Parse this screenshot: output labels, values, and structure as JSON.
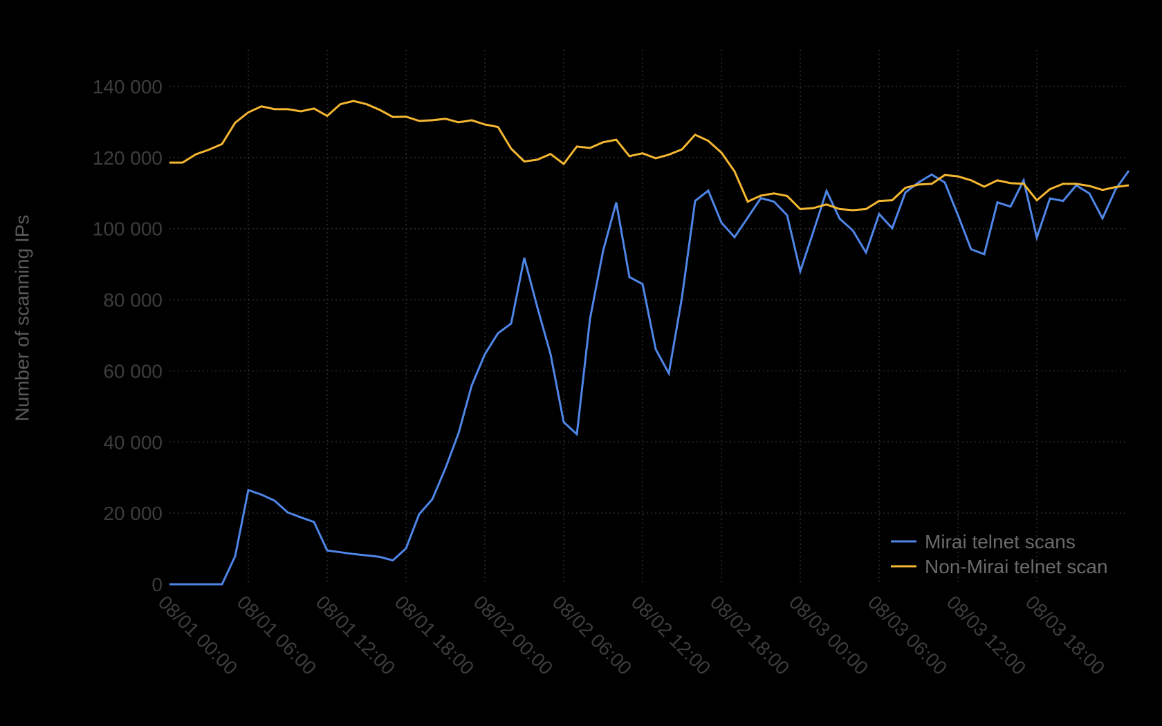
{
  "chart_data": {
    "type": "line",
    "title": "",
    "xlabel": "",
    "ylabel": "Number of scanning IPs",
    "ylim": [
      0,
      140000
    ],
    "yticks": [
      0,
      20000,
      40000,
      60000,
      80000,
      100000,
      120000,
      140000
    ],
    "ytick_labels": [
      "0",
      "20 000",
      "40 000",
      "60 000",
      "80 000",
      "100 000",
      "120 000",
      "140 000"
    ],
    "xtick_labels": [
      "08/01 00:00",
      "08/01 06:00",
      "08/01 12:00",
      "08/01 18:00",
      "08/02 00:00",
      "08/02 06:00",
      "08/02 12:00",
      "08/02 18:00",
      "08/03 00:00",
      "08/03 06:00",
      "08/03 12:00",
      "08/03 18:00"
    ],
    "xtick_hours": [
      0,
      6,
      12,
      18,
      24,
      30,
      36,
      42,
      48,
      54,
      60,
      66
    ],
    "x_unit": "hours since 08/01 00:00",
    "x": [
      0,
      1,
      2,
      3,
      4,
      5,
      6,
      7,
      8,
      9,
      10,
      11,
      12,
      13,
      14,
      15,
      16,
      17,
      18,
      19,
      20,
      21,
      22,
      23,
      24,
      25,
      26,
      27,
      28,
      29,
      30,
      31,
      32,
      33,
      34,
      35,
      36,
      37,
      38,
      39,
      40,
      41,
      42,
      43,
      44,
      45,
      46,
      47,
      48,
      49,
      50,
      51,
      52,
      53,
      54,
      55,
      56,
      57,
      58,
      59,
      60,
      61,
      62,
      63,
      64,
      65,
      66,
      67,
      68,
      69,
      70,
      71,
      72,
      73
    ],
    "grid": true,
    "legend_position": "lower right",
    "series": [
      {
        "name": "Mirai telnet scans",
        "color": "#4f86e8",
        "values": [
          0,
          0,
          0,
          0,
          0,
          7900,
          26500,
          25200,
          23500,
          20200,
          18800,
          17500,
          9500,
          9000,
          8500,
          8100,
          7700,
          6700,
          10100,
          19700,
          23900,
          32600,
          42500,
          55900,
          64700,
          70600,
          73300,
          91800,
          77800,
          64700,
          45600,
          42200,
          74600,
          93800,
          107400,
          86400,
          84400,
          66100,
          59300,
          80700,
          107800,
          110700,
          101700,
          97600,
          103100,
          108600,
          107600,
          103800,
          88000,
          99200,
          110600,
          102800,
          99500,
          93300,
          104100,
          100100,
          110200,
          113000,
          115200,
          113000,
          103800,
          94200,
          92800,
          107400,
          106200,
          113600,
          97500,
          108500,
          107800,
          112200,
          109900,
          102900,
          111100,
          116300
        ]
      },
      {
        "name": "Non-Mirai telnet scan",
        "color": "#f5b731",
        "values": [
          118600,
          118600,
          120900,
          122200,
          123800,
          129800,
          132700,
          134400,
          133600,
          133600,
          133000,
          133800,
          131700,
          135000,
          135900,
          135000,
          133400,
          131400,
          131500,
          130300,
          130500,
          130900,
          129900,
          130500,
          129300,
          128600,
          122500,
          118900,
          119400,
          121000,
          118200,
          123100,
          122700,
          124300,
          125000,
          120400,
          121200,
          119800,
          120800,
          122300,
          126400,
          124700,
          121400,
          116100,
          107600,
          109300,
          109900,
          109200,
          105500,
          105800,
          106800,
          105500,
          105200,
          105500,
          107800,
          108000,
          111500,
          112400,
          112600,
          115100,
          114700,
          113600,
          111800,
          113600,
          112800,
          112600,
          108000,
          111100,
          112600,
          112600,
          112000,
          110900,
          111700,
          112200
        ]
      }
    ]
  },
  "legend": {
    "items": [
      {
        "label": "Mirai telnet scans",
        "color": "#4f86e8"
      },
      {
        "label": "Non-Mirai telnet scan",
        "color": "#f5b731"
      }
    ]
  },
  "axes": {
    "ylabel": "Number of scanning IPs"
  }
}
